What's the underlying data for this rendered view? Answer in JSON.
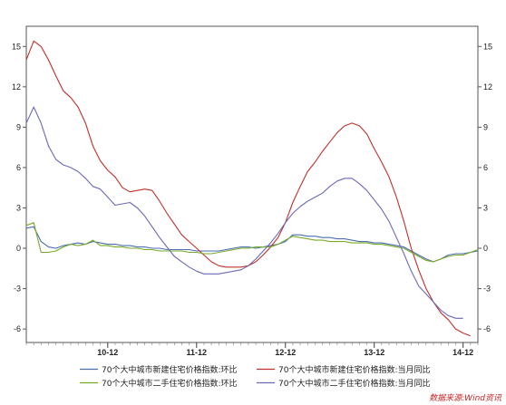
{
  "chart_data": {
    "type": "line",
    "title": "",
    "xlabel": "",
    "ylabel": "",
    "ylim": [
      -7,
      16.5
    ],
    "y_ticks": [
      15,
      12,
      9,
      6,
      3,
      0,
      -3,
      -6
    ],
    "y_ticks_right": [
      15,
      12,
      9,
      6,
      3,
      0,
      -3,
      -6
    ],
    "x_ticks": [
      {
        "label": "10-12",
        "index": 11
      },
      {
        "label": "11-12",
        "index": 23
      },
      {
        "label": "12-12",
        "index": 35
      },
      {
        "label": "13-12",
        "index": 47
      },
      {
        "label": "14-12",
        "index": 59
      }
    ],
    "grid": false,
    "legend_position": "bottom",
    "series": [
      {
        "name": "70个大中城市新建住宅价格指数:环比",
        "color": "#4a6fb0",
        "values": [
          1.5,
          1.6,
          0.5,
          0.1,
          0.0,
          0.2,
          0.3,
          0.4,
          0.3,
          0.5,
          0.4,
          0.3,
          0.3,
          0.2,
          0.2,
          0.1,
          0.1,
          0.0,
          0.0,
          -0.1,
          -0.1,
          -0.1,
          -0.1,
          -0.2,
          -0.2,
          -0.2,
          -0.2,
          -0.1,
          0.0,
          0.1,
          0.1,
          0.0,
          0.1,
          0.2,
          0.3,
          0.5,
          1.0,
          1.0,
          0.9,
          0.9,
          0.8,
          0.8,
          0.7,
          0.7,
          0.6,
          0.5,
          0.5,
          0.4,
          0.4,
          0.3,
          0.2,
          0.1,
          -0.2,
          -0.5,
          -0.8,
          -1.0,
          -0.8,
          -0.5,
          -0.4,
          -0.4,
          -0.3,
          -0.2
        ]
      },
      {
        "name": "70个大中城市新建住宅价格指数:当月同比",
        "color": "#c0302a",
        "values": [
          14.0,
          15.4,
          15.0,
          14.0,
          12.8,
          11.7,
          11.2,
          10.5,
          9.3,
          7.6,
          6.5,
          5.8,
          5.3,
          4.5,
          4.2,
          4.3,
          4.4,
          4.3,
          3.5,
          2.6,
          1.8,
          1.0,
          0.5,
          0.0,
          -0.5,
          -1.0,
          -1.3,
          -1.4,
          -1.4,
          -1.4,
          -1.3,
          -1.0,
          -0.5,
          0.1,
          0.8,
          1.9,
          3.4,
          4.6,
          5.7,
          6.4,
          7.2,
          7.9,
          8.6,
          9.1,
          9.3,
          9.1,
          8.5,
          7.4,
          6.4,
          5.3,
          3.8,
          2.0,
          0.0,
          -1.6,
          -3.0,
          -4.0,
          -4.8,
          -5.3,
          -6.0,
          -6.3,
          -6.5
        ]
      },
      {
        "name": "70个大中城市二手住宅价格指数:环比",
        "color": "#7aaa2a",
        "values": [
          1.7,
          1.9,
          -0.3,
          -0.3,
          -0.2,
          0.1,
          0.3,
          0.2,
          0.3,
          0.6,
          0.2,
          0.2,
          0.1,
          0.1,
          0.0,
          0.0,
          -0.1,
          -0.1,
          -0.2,
          -0.2,
          -0.2,
          -0.2,
          -0.3,
          -0.3,
          -0.4,
          -0.4,
          -0.3,
          -0.2,
          -0.1,
          0.0,
          0.0,
          0.1,
          0.1,
          0.1,
          0.3,
          0.6,
          0.9,
          0.8,
          0.7,
          0.6,
          0.6,
          0.5,
          0.5,
          0.5,
          0.4,
          0.4,
          0.4,
          0.3,
          0.3,
          0.2,
          0.1,
          0.0,
          -0.3,
          -0.6,
          -0.9,
          -1.0,
          -0.8,
          -0.6,
          -0.5,
          -0.5,
          -0.3,
          -0.1
        ]
      },
      {
        "name": "70个大中城市二手住宅价格指数:当月同比",
        "color": "#6a6ab8",
        "values": [
          9.3,
          10.5,
          9.3,
          7.6,
          6.6,
          6.2,
          6.0,
          5.7,
          5.2,
          4.6,
          4.4,
          3.8,
          3.2,
          3.3,
          3.4,
          3.0,
          2.4,
          1.6,
          0.8,
          0.1,
          -0.6,
          -1.0,
          -1.4,
          -1.7,
          -1.9,
          -1.9,
          -1.9,
          -1.8,
          -1.7,
          -1.6,
          -1.3,
          -0.8,
          -0.2,
          0.4,
          1.1,
          1.9,
          2.6,
          3.1,
          3.5,
          3.8,
          4.1,
          4.6,
          5.0,
          5.2,
          5.2,
          4.8,
          4.3,
          3.6,
          2.9,
          2.0,
          0.8,
          -0.4,
          -1.7,
          -2.8,
          -3.4,
          -4.0,
          -4.6,
          -5.0,
          -5.2,
          -5.2
        ]
      }
    ]
  },
  "source": "数据来源:Wind资讯"
}
